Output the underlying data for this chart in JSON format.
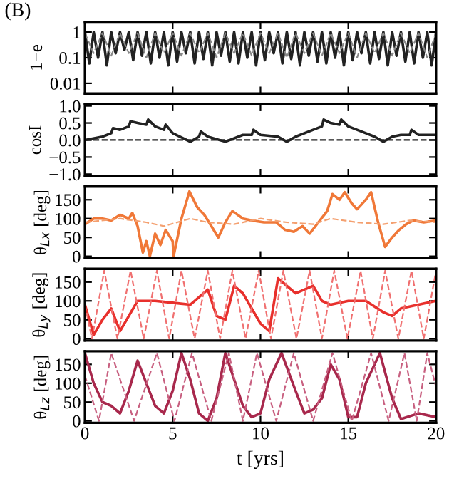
{
  "chart_data": [
    {
      "type": "line",
      "ylabel": "1−e",
      "annotations": [
        "(B)"
      ],
      "log": "y",
      "xlim": [
        0,
        20
      ],
      "xticks": [
        0,
        5,
        10,
        15,
        20
      ],
      "ylim": [
        0.004,
        2.5
      ],
      "yticks": [
        1,
        0.1,
        0.01
      ],
      "tick_labels": "y",
      "series": [
        {
          "color": "#222222",
          "line_style": "solid",
          "x": [
            0,
            0.25,
            0.5,
            0.75,
            1,
            1.25,
            1.5,
            1.75,
            2,
            2.25,
            2.5,
            2.75,
            3,
            3.25,
            3.5,
            3.75,
            4,
            4.25,
            4.5,
            4.75,
            5,
            5.25,
            5.5,
            5.75,
            6,
            6.25,
            6.5,
            6.75,
            7,
            7.25,
            7.5,
            7.75,
            8,
            8.25,
            8.5,
            8.75,
            9,
            9.25,
            9.5,
            9.75,
            10,
            10.25,
            10.5,
            10.75,
            11,
            11.25,
            11.5,
            11.75,
            12,
            12.25,
            12.5,
            12.75,
            13,
            13.25,
            13.5,
            13.75,
            14,
            14.25,
            14.5,
            14.75,
            15,
            15.25,
            15.5,
            15.75,
            16,
            16.25,
            16.5,
            16.75,
            17,
            17.25,
            17.5,
            17.75,
            18,
            18.25,
            18.5,
            18.75,
            19,
            19.25,
            19.5,
            19.75,
            20
          ],
          "values": [
            1,
            0.06,
            1,
            0.1,
            1,
            0.05,
            1,
            0.15,
            1,
            0.2,
            1,
            0.08,
            1,
            0.12,
            1,
            0.06,
            1,
            0.1,
            1,
            0.05,
            1,
            0.07,
            1,
            0.15,
            1,
            0.06,
            1,
            0.09,
            1,
            0.05,
            1,
            0.12,
            1,
            0.07,
            1,
            0.06,
            1,
            0.1,
            1,
            0.05,
            1,
            0.08,
            1,
            0.15,
            1,
            0.06,
            1,
            0.09,
            1,
            0.05,
            1,
            0.12,
            1,
            0.07,
            1,
            0.06,
            1,
            0.1,
            1,
            0.05,
            1,
            0.08,
            1,
            0.15,
            1,
            0.06,
            1,
            0.09,
            1,
            0.05,
            1,
            0.12,
            1,
            0.07,
            1,
            0.06,
            1,
            0.1,
            1,
            0.05,
            1
          ]
        },
        {
          "color": "#888888",
          "line_style": "dashed",
          "x": [
            0,
            0.5,
            1,
            1.5,
            2,
            2.5,
            3,
            3.5,
            4,
            4.5,
            5,
            5.5,
            6,
            6.5,
            7,
            7.5,
            8,
            8.5,
            9,
            9.5,
            10,
            10.5,
            11,
            11.5,
            12,
            12.5,
            13,
            13.5,
            14,
            14.5,
            15,
            15.5,
            16,
            16.5,
            17,
            17.5,
            18,
            18.5,
            19,
            19.5,
            20
          ],
          "values": [
            0.9,
            0.15,
            0.9,
            0.12,
            0.9,
            0.15,
            0.9,
            0.1,
            0.9,
            0.15,
            0.9,
            0.12,
            0.9,
            0.15,
            0.9,
            0.1,
            0.9,
            0.15,
            0.9,
            0.12,
            0.9,
            0.15,
            0.9,
            0.1,
            0.9,
            0.15,
            0.9,
            0.12,
            0.9,
            0.15,
            0.9,
            0.1,
            0.9,
            0.15,
            0.9,
            0.12,
            0.9,
            0.15,
            0.9,
            0.1,
            0.9
          ]
        }
      ]
    },
    {
      "type": "line",
      "ylabel": "cosI",
      "xlim": [
        0,
        20
      ],
      "xticks": [
        0,
        5,
        10,
        15,
        20
      ],
      "ylim": [
        -1.05,
        1.05
      ],
      "yticks": [
        {
          "value": 1,
          "label": "1.0"
        },
        {
          "value": 0.5,
          "label": "0.5"
        },
        {
          "value": 0,
          "label": "0.0"
        },
        {
          "value": -0.5,
          "label": "−0.5"
        },
        {
          "value": -1,
          "label": "−1.0"
        }
      ],
      "tick_labels": "y",
      "series": [
        {
          "color": "#222222",
          "line_style": "solid",
          "x": [
            0,
            1,
            1.5,
            1.6,
            2,
            2.5,
            2.6,
            3,
            3.5,
            3.6,
            4,
            4.5,
            4.6,
            5,
            6,
            6.5,
            6.6,
            7,
            8,
            9,
            9.5,
            9.6,
            10,
            11,
            11.5,
            12,
            13,
            13.5,
            13.6,
            14,
            14.5,
            14.6,
            15,
            16,
            16.5,
            17,
            17.5,
            18,
            18.5,
            18.6,
            19,
            20
          ],
          "values": [
            0,
            0.1,
            0.2,
            0.35,
            0.3,
            0.4,
            0.55,
            0.5,
            0.45,
            0.6,
            0.4,
            0.3,
            0.45,
            0.2,
            -0.05,
            0.1,
            0.25,
            0.1,
            -0.05,
            0.15,
            0.15,
            0.3,
            0.15,
            0.1,
            -0.05,
            0.1,
            0.3,
            0.4,
            0.6,
            0.5,
            0.45,
            0.6,
            0.4,
            0.2,
            0.1,
            -0.05,
            0.1,
            0.15,
            0.15,
            0.3,
            0.15,
            0.15
          ]
        },
        {
          "color": "#222222",
          "line_style": "dashed",
          "x": [
            0,
            20
          ],
          "values": [
            0,
            0
          ]
        }
      ]
    },
    {
      "type": "line",
      "ylabel": "θ$_{Lx}$ [deg]",
      "xlim": [
        0,
        20
      ],
      "xticks": [
        0,
        5,
        10,
        15,
        20
      ],
      "ylim": [
        -5,
        185
      ],
      "yticks": [
        0,
        50,
        100,
        150
      ],
      "tick_labels": "y",
      "series": [
        {
          "color": "#f07838",
          "line_style": "solid",
          "x": [
            0,
            0.5,
            1,
            1.5,
            2,
            2.5,
            2.7,
            3,
            3.3,
            3.5,
            3.7,
            4,
            4.3,
            4.6,
            5,
            5.05,
            5.5,
            5.95,
            6.4,
            6.8,
            7.2,
            7.6,
            8,
            8.4,
            9,
            9.5,
            10.2,
            10.9,
            11.4,
            11.9,
            12.4,
            12.8,
            13.3,
            13.8,
            14.1,
            14.5,
            14.8,
            15.2,
            15.5,
            16,
            16.3,
            16.7,
            17.1,
            17.5,
            17.9,
            18.3,
            18.7,
            19.3,
            20
          ],
          "values": [
            85,
            100,
            100,
            95,
            110,
            100,
            115,
            80,
            10,
            40,
            0,
            60,
            30,
            70,
            40,
            0,
            100,
            172,
            130,
            110,
            80,
            50,
            90,
            120,
            100,
            95,
            90,
            90,
            70,
            65,
            80,
            60,
            90,
            120,
            165,
            150,
            170,
            140,
            125,
            150,
            170,
            90,
            25,
            50,
            70,
            85,
            95,
            90,
            95
          ]
        },
        {
          "color": "#f4a070",
          "line_style": "dashed",
          "x": [
            0,
            2,
            3.5,
            4.5,
            6,
            7,
            8.5,
            10,
            11.5,
            13,
            14,
            15.5,
            17,
            18.5,
            20
          ],
          "values": [
            90,
            100,
            90,
            80,
            100,
            90,
            85,
            100,
            90,
            85,
            100,
            90,
            85,
            95,
            90
          ]
        }
      ]
    },
    {
      "type": "line",
      "ylabel": "θ$_{Ly}$ [deg]",
      "xlim": [
        0,
        20
      ],
      "xticks": [
        0,
        5,
        10,
        15,
        20
      ],
      "ylim": [
        -5,
        185
      ],
      "yticks": [
        0,
        50,
        100,
        150
      ],
      "tick_labels": "y",
      "series": [
        {
          "color": "#e8302c",
          "line_style": "solid",
          "x": [
            0,
            0.5,
            1,
            1.5,
            2,
            2.5,
            3,
            4,
            5,
            6,
            7,
            7.5,
            8,
            8.5,
            9,
            10,
            10.5,
            11,
            12,
            13,
            13.5,
            14,
            15,
            16,
            17,
            17.5,
            18,
            19,
            20
          ],
          "values": [
            90,
            10,
            50,
            80,
            20,
            60,
            100,
            100,
            95,
            90,
            130,
            60,
            50,
            140,
            120,
            40,
            20,
            160,
            120,
            140,
            100,
            90,
            100,
            100,
            70,
            60,
            80,
            90,
            100
          ]
        },
        {
          "color": "#f07070",
          "line_style": "dashed",
          "x": [
            0,
            0.4,
            1.1,
            1.85,
            2.6,
            3.35,
            4.1,
            4.8,
            5.5,
            6.25,
            7,
            7.7,
            8.4,
            9.15,
            9.9,
            10.6,
            11.3,
            12.05,
            12.8,
            13.5,
            14.2,
            14.95,
            15.7,
            16.4,
            17.1,
            17.85,
            18.6,
            19.3,
            20
          ],
          "values": [
            90,
            0,
            180,
            0,
            180,
            0,
            180,
            0,
            180,
            0,
            180,
            0,
            180,
            0,
            180,
            0,
            180,
            0,
            180,
            0,
            180,
            0,
            180,
            0,
            180,
            0,
            180,
            0,
            180
          ]
        }
      ]
    },
    {
      "type": "line",
      "ylabel": "θ$_{Lz}$ [deg]",
      "xlabel": "t [yrs]",
      "xlim": [
        0,
        20
      ],
      "xticks": [
        0,
        5,
        10,
        15,
        20
      ],
      "ylim": [
        -5,
        185
      ],
      "yticks": [
        0,
        50,
        100,
        150
      ],
      "series": [
        {
          "color": "#a8284c",
          "line_style": "solid",
          "x": [
            0,
            0.5,
            1,
            1.5,
            2,
            2.5,
            3,
            3.5,
            4,
            4.5,
            5,
            5.5,
            6,
            6.5,
            7,
            7.5,
            8,
            8.5,
            9,
            9.5,
            10,
            10.5,
            11.2,
            12,
            12.5,
            13,
            13.5,
            14,
            14.5,
            15,
            15.5,
            16,
            16.8,
            17.5,
            18,
            19,
            20
          ],
          "values": [
            180,
            100,
            50,
            40,
            20,
            80,
            160,
            100,
            40,
            20,
            80,
            180,
            110,
            20,
            0,
            60,
            180,
            110,
            40,
            10,
            20,
            110,
            180,
            80,
            20,
            30,
            60,
            150,
            110,
            10,
            10,
            100,
            180,
            60,
            5,
            20,
            10
          ]
        },
        {
          "color": "#c86080",
          "line_style": "dashed",
          "x": [
            0,
            0.8,
            1.5,
            2.8,
            4.1,
            5.1,
            6.1,
            7.2,
            8.2,
            9,
            9.8,
            10.9,
            11.9,
            13,
            14.1,
            15.2,
            16.3,
            17.3,
            18.2,
            18.9,
            19.5,
            20
          ],
          "values": [
            120,
            0,
            180,
            0,
            180,
            0,
            180,
            0,
            180,
            0,
            180,
            0,
            180,
            0,
            180,
            0,
            180,
            0,
            180,
            0,
            180,
            90
          ]
        }
      ]
    }
  ]
}
